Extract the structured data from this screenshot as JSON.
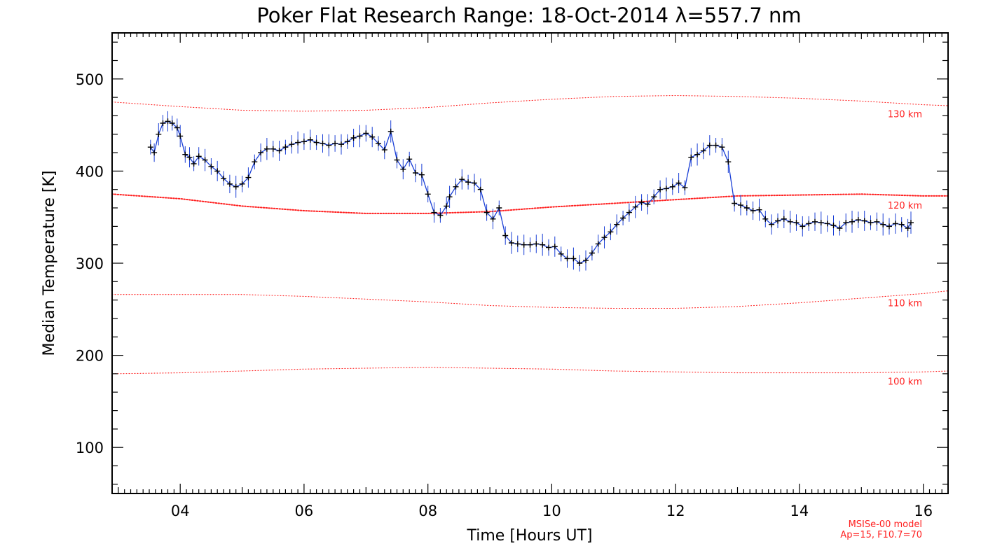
{
  "chart_data": {
    "type": "line",
    "title": "Poker Flat Research Range: 18-Oct-2014 λ=557.7 nm",
    "xlabel": "Time [Hours UT]",
    "ylabel": "Median Temperature [K]",
    "xlim": [
      2.9,
      16.4
    ],
    "ylim": [
      50,
      550
    ],
    "x_ticks": [
      4,
      6,
      8,
      10,
      12,
      14,
      16
    ],
    "x_tick_labels": [
      "04",
      "06",
      "08",
      "10",
      "12",
      "14",
      "16"
    ],
    "y_ticks": [
      100,
      200,
      300,
      400,
      500
    ],
    "y_tick_labels": [
      "100",
      "200",
      "300",
      "400",
      "500"
    ],
    "grid": false,
    "legend": "none",
    "colors": {
      "measured_line": "#1a3fd6",
      "measured_marker": "#000000",
      "model": "#ff2020"
    },
    "series": [
      {
        "style": "line with plus markers and vertical error bars",
        "x": [
          3.52,
          3.58,
          3.65,
          3.72,
          3.8,
          3.87,
          3.95,
          4.0,
          4.08,
          4.15,
          4.22,
          4.3,
          4.4,
          4.5,
          4.6,
          4.7,
          4.8,
          4.9,
          5.0,
          5.1,
          5.2,
          5.3,
          5.4,
          5.5,
          5.6,
          5.7,
          5.8,
          5.9,
          6.0,
          6.1,
          6.2,
          6.3,
          6.4,
          6.5,
          6.6,
          6.7,
          6.8,
          6.9,
          7.0,
          7.1,
          7.2,
          7.3,
          7.4,
          7.5,
          7.6,
          7.7,
          7.8,
          7.9,
          8.0,
          8.1,
          8.2,
          8.3,
          8.35,
          8.45,
          8.55,
          8.65,
          8.75,
          8.85,
          8.95,
          9.05,
          9.15,
          9.25,
          9.35,
          9.45,
          9.55,
          9.65,
          9.75,
          9.85,
          9.95,
          10.05,
          10.15,
          10.25,
          10.35,
          10.45,
          10.55,
          10.65,
          10.75,
          10.85,
          10.95,
          11.05,
          11.15,
          11.25,
          11.35,
          11.45,
          11.55,
          11.65,
          11.75,
          11.85,
          11.95,
          12.05,
          12.15,
          12.25,
          12.35,
          12.45,
          12.55,
          12.65,
          12.75,
          12.85,
          12.95,
          13.05,
          13.15,
          13.25,
          13.35,
          13.45,
          13.55,
          13.65,
          13.75,
          13.85,
          13.95,
          14.05,
          14.15,
          14.25,
          14.35,
          14.45,
          14.55,
          14.65,
          14.75,
          14.85,
          14.95,
          15.05,
          15.15,
          15.25,
          15.35,
          15.45,
          15.55,
          15.65,
          15.75,
          15.8
        ],
        "y": [
          426,
          420,
          440,
          452,
          454,
          452,
          447,
          438,
          418,
          415,
          408,
          416,
          412,
          405,
          400,
          392,
          386,
          383,
          386,
          393,
          410,
          420,
          424,
          424,
          422,
          426,
          429,
          431,
          432,
          434,
          431,
          430,
          428,
          430,
          429,
          432,
          436,
          438,
          441,
          437,
          430,
          423,
          443,
          412,
          402,
          413,
          398,
          396,
          375,
          355,
          352,
          362,
          372,
          383,
          391,
          388,
          387,
          380,
          355,
          348,
          360,
          330,
          322,
          321,
          320,
          320,
          321,
          320,
          317,
          318,
          310,
          305,
          305,
          300,
          303,
          311,
          321,
          328,
          334,
          342,
          349,
          355,
          361,
          366,
          364,
          372,
          380,
          381,
          383,
          387,
          382,
          415,
          418,
          422,
          428,
          428,
          426,
          410,
          365,
          363,
          360,
          357,
          358,
          348,
          342,
          346,
          348,
          345,
          344,
          340,
          343,
          345,
          344,
          343,
          341,
          338,
          344,
          345,
          347,
          346,
          344,
          345,
          342,
          340,
          343,
          342,
          338,
          344
        ]
      }
    ],
    "model_curves": [
      {
        "label": "130 km",
        "style": "sparse dots",
        "x": [
          2.9,
          4.0,
          5.0,
          6.0,
          7.0,
          8.0,
          9.0,
          10.0,
          11.0,
          12.0,
          13.0,
          14.0,
          15.0,
          16.0,
          16.4
        ],
        "y": [
          475,
          470,
          466,
          465,
          466,
          469,
          474,
          478,
          481,
          482,
          481,
          479,
          476,
          472,
          471
        ]
      },
      {
        "label": "120 km",
        "style": "dense dots",
        "x": [
          2.9,
          4.0,
          5.0,
          6.0,
          7.0,
          8.0,
          9.0,
          10.0,
          11.0,
          12.0,
          13.0,
          14.0,
          15.0,
          16.0,
          16.4
        ],
        "y": [
          375,
          370,
          362,
          357,
          354,
          354,
          356,
          361,
          365,
          369,
          373,
          374,
          375,
          373,
          373
        ]
      },
      {
        "label": "110 km",
        "style": "sparse dots",
        "x": [
          2.9,
          4.0,
          5.0,
          6.0,
          7.0,
          8.0,
          9.0,
          10.0,
          11.0,
          12.0,
          13.0,
          14.0,
          15.0,
          16.0,
          16.4
        ],
        "y": [
          266,
          266,
          266,
          264,
          261,
          258,
          254,
          252,
          251,
          251,
          253,
          257,
          262,
          267,
          270
        ]
      },
      {
        "label": "100 km",
        "style": "sparse dots",
        "x": [
          2.9,
          4.0,
          5.0,
          6.0,
          7.0,
          8.0,
          9.0,
          10.0,
          11.0,
          12.0,
          13.0,
          14.0,
          15.0,
          16.0,
          16.4
        ],
        "y": [
          180,
          181,
          183,
          185,
          186,
          187,
          186,
          185,
          183,
          182,
          181,
          181,
          181,
          182,
          183
        ]
      }
    ],
    "annotations": [
      "MSISe-00 model",
      "Ap=15, F10.7=70"
    ]
  }
}
